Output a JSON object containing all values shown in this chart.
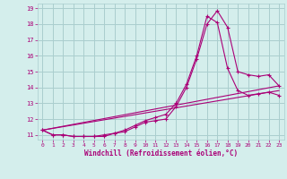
{
  "xlabel": "Windchill (Refroidissement éolien,°C)",
  "xlim": [
    -0.5,
    23.5
  ],
  "ylim": [
    10.7,
    19.3
  ],
  "yticks": [
    11,
    12,
    13,
    14,
    15,
    16,
    17,
    18,
    19
  ],
  "xticks": [
    0,
    1,
    2,
    3,
    4,
    5,
    6,
    7,
    8,
    9,
    10,
    11,
    12,
    13,
    14,
    15,
    16,
    17,
    18,
    19,
    20,
    21,
    22,
    23
  ],
  "bg_color": "#d4eeec",
  "grid_color": "#aacece",
  "line_color": "#aa0077",
  "line1_x": [
    0,
    1,
    2,
    3,
    4,
    5,
    6,
    7,
    8,
    9,
    10,
    11,
    12,
    13,
    14,
    15,
    16,
    17,
    18,
    19,
    20,
    21,
    22,
    23
  ],
  "line1_y": [
    11.3,
    11.0,
    11.0,
    10.9,
    10.9,
    10.9,
    10.9,
    11.1,
    11.2,
    11.5,
    11.8,
    11.9,
    12.0,
    12.8,
    14.0,
    15.8,
    18.0,
    18.85,
    17.8,
    15.0,
    14.8,
    14.7,
    14.8,
    14.1
  ],
  "line2_x": [
    0,
    1,
    2,
    3,
    4,
    5,
    6,
    7,
    8,
    9,
    10,
    11,
    12,
    13,
    14,
    15,
    16,
    17,
    18,
    19,
    20,
    21,
    22,
    23
  ],
  "line2_y": [
    11.3,
    11.0,
    11.0,
    10.9,
    10.9,
    10.9,
    11.0,
    11.1,
    11.3,
    11.6,
    11.9,
    12.1,
    12.3,
    13.0,
    14.2,
    16.0,
    18.5,
    18.1,
    15.2,
    13.8,
    13.5,
    13.6,
    13.7,
    13.5
  ],
  "line3_x": [
    0,
    23
  ],
  "line3_y": [
    11.3,
    13.8
  ],
  "line4_x": [
    0,
    23
  ],
  "line4_y": [
    11.3,
    14.1
  ]
}
